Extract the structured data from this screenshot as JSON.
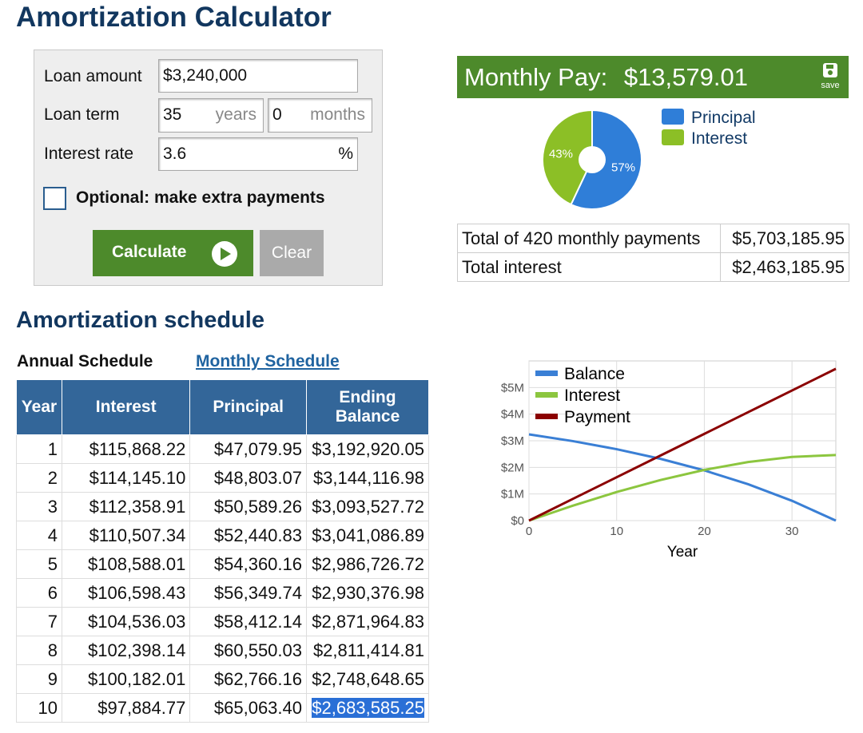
{
  "header": {
    "title": "Amortization Calculator"
  },
  "form": {
    "loan_amount_label": "Loan amount",
    "loan_amount": "$3,240,000",
    "loan_term_label": "Loan term",
    "term_years": "35",
    "years_unit": "years",
    "term_months": "0",
    "months_unit": "months",
    "interest_label": "Interest rate",
    "interest": "3.6",
    "percent": "%",
    "extra": "Optional: make extra payments",
    "calculate": "Calculate",
    "clear": "Clear"
  },
  "result": {
    "monthly_label": "Monthly Pay:",
    "monthly_value": "$13,579.01",
    "save": "save"
  },
  "summary": {
    "rows": [
      [
        "Total of 420 monthly payments",
        "$5,703,185.95"
      ],
      [
        "Total interest",
        "$2,463,185.95"
      ]
    ]
  },
  "schedule": {
    "title": "Amortization schedule",
    "tabs": [
      "Annual Schedule",
      "Monthly Schedule"
    ],
    "columns": [
      "Year",
      "Interest",
      "Principal",
      "Ending Balance"
    ],
    "rows": [
      [
        "1",
        "$115,868.22",
        "$47,079.95",
        "$3,192,920.05"
      ],
      [
        "2",
        "$114,145.10",
        "$48,803.07",
        "$3,144,116.98"
      ],
      [
        "3",
        "$112,358.91",
        "$50,589.26",
        "$3,093,527.72"
      ],
      [
        "4",
        "$110,507.34",
        "$52,440.83",
        "$3,041,086.89"
      ],
      [
        "5",
        "$108,588.01",
        "$54,360.16",
        "$2,986,726.72"
      ],
      [
        "6",
        "$106,598.43",
        "$56,349.74",
        "$2,930,376.98"
      ],
      [
        "7",
        "$104,536.03",
        "$58,412.14",
        "$2,871,964.83"
      ],
      [
        "8",
        "$102,398.14",
        "$60,550.03",
        "$2,811,414.81"
      ],
      [
        "9",
        "$100,182.01",
        "$62,766.16",
        "$2,748,648.65"
      ],
      [
        "10",
        "$97,884.77",
        "$65,063.40",
        "$2,683,585.25"
      ]
    ]
  },
  "chart_data": [
    {
      "type": "pie",
      "categories": [
        "Principal",
        "Interest"
      ],
      "values": [
        57,
        43
      ],
      "value_labels": [
        "57%",
        "43%"
      ],
      "colors": [
        "#2f7ed8",
        "#8cbf26"
      ],
      "legend": "right"
    },
    {
      "type": "line",
      "xlabel": "Year",
      "x": [
        0,
        5,
        10,
        15,
        20,
        25,
        30,
        35
      ],
      "xlim": [
        0,
        35
      ],
      "xticks": [
        0,
        10,
        20,
        30
      ],
      "ylim": [
        0,
        6000000
      ],
      "yticks": [
        {
          "value": 0,
          "label": "$0"
        },
        {
          "value": 1000000,
          "label": "$1M"
        },
        {
          "value": 2000000,
          "label": "$2M"
        },
        {
          "value": 3000000,
          "label": "$3M"
        },
        {
          "value": 4000000,
          "label": "$4M"
        },
        {
          "value": 5000000,
          "label": "$5M"
        }
      ],
      "grid": true,
      "legend": "upper left",
      "series": [
        {
          "name": "Balance",
          "color": "#3a7fd5",
          "values": [
            3240000,
            2986727,
            2683585,
            2320800,
            1886400,
            1366600,
            744500,
            0
          ]
        },
        {
          "name": "Interest",
          "color": "#8cc63f",
          "values": [
            0,
            561468,
            1073066,
            1525000,
            1905350,
            2200300,
            2392950,
            2463186
          ]
        },
        {
          "name": "Payment",
          "color": "#8b0000",
          "values": [
            0,
            814741,
            1629481,
            2444222,
            3258962,
            4073703,
            4888444,
            5703186
          ]
        }
      ]
    }
  ]
}
